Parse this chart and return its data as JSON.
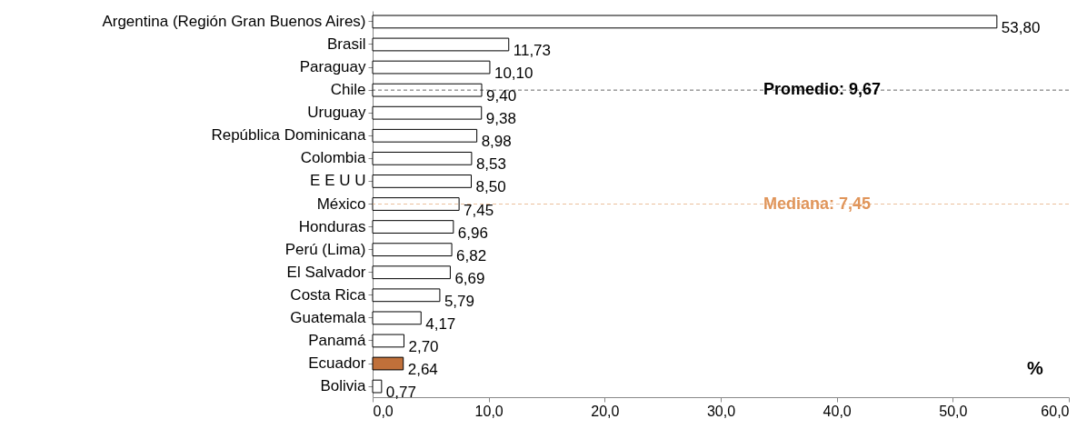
{
  "chart_data": {
    "type": "bar",
    "orientation": "horizontal",
    "categories": [
      "Argentina (Región Gran Buenos Aires)",
      "Brasil",
      "Paraguay",
      "Chile",
      "Uruguay",
      "República Dominicana",
      "Colombia",
      "E E U U",
      "México",
      "Honduras",
      "Perú (Lima)",
      "El Salvador",
      "Costa Rica",
      "Guatemala",
      "Panamá",
      "Ecuador",
      "Bolivia"
    ],
    "values": [
      53.8,
      11.73,
      10.1,
      9.4,
      9.38,
      8.98,
      8.53,
      8.5,
      7.45,
      6.96,
      6.82,
      6.69,
      5.79,
      4.17,
      2.7,
      2.64,
      0.77
    ],
    "value_labels": [
      "53,80",
      "11,73",
      "10,10",
      "9,40",
      "9,38",
      "8,98",
      "8,53",
      "8,50",
      "7,45",
      "6,96",
      "6,82",
      "6,69",
      "5,79",
      "4,17",
      "2,70",
      "2,64",
      "0,77"
    ],
    "colors": [
      "#ffffff",
      "#ffffff",
      "#ffffff",
      "#ffffff",
      "#ffffff",
      "#ffffff",
      "#ffffff",
      "#ffffff",
      "#ffffff",
      "#ffffff",
      "#ffffff",
      "#ffffff",
      "#ffffff",
      "#ffffff",
      "#ffffff",
      "#c0703a",
      "#ffffff"
    ],
    "xlim": [
      0,
      60
    ],
    "xticks": [
      {
        "value": 0,
        "label": "0,0"
      },
      {
        "value": 10,
        "label": "10,0"
      },
      {
        "value": 20,
        "label": "20,0"
      },
      {
        "value": 30,
        "label": "30,0"
      },
      {
        "value": 40,
        "label": "40,0"
      },
      {
        "value": 50,
        "label": "50,0"
      },
      {
        "value": 60,
        "label": "60,0"
      }
    ],
    "ref_lines": [
      {
        "axis": "y",
        "value": "Chile",
        "label": "Promedio:    9,67",
        "color": "#000000",
        "line_style": "dashed"
      },
      {
        "axis": "y",
        "value": "México",
        "label": "Mediana:    7,45",
        "color": "#e0955a",
        "line_style": "dashed"
      }
    ],
    "annotations": [
      "%"
    ],
    "grid": false
  }
}
